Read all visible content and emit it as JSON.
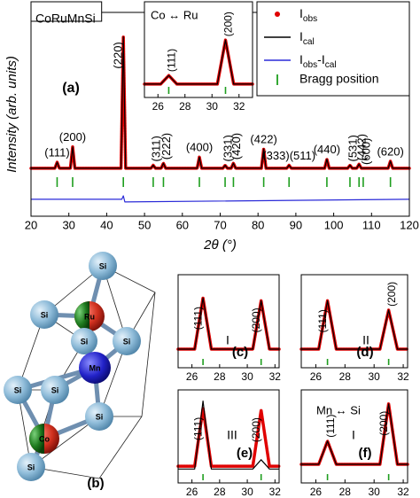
{
  "chart_data": [
    {
      "type": "line",
      "title": "CoRuMnSi",
      "panel_label": "(a)",
      "xlabel": "2θ (°)",
      "ylabel": "Intensity (arb. units)",
      "xlim": [
        20,
        120
      ],
      "xticks": [
        20,
        30,
        40,
        50,
        60,
        70,
        80,
        90,
        100,
        110,
        120
      ],
      "ylim": [
        0,
        100
      ],
      "x": [
        20,
        26.3,
        26.9,
        27.5,
        30.4,
        31,
        31.6,
        43.8,
        44.4,
        45,
        51.7,
        52.3,
        52.9,
        54.4,
        55,
        55.6,
        63.9,
        64.5,
        65.1,
        70.7,
        71.3,
        71.9,
        72.9,
        73.5,
        74.1,
        80.9,
        81.5,
        82.1,
        87.6,
        88.2,
        88.8,
        97.6,
        98.2,
        98.8,
        103.7,
        104.3,
        104.9,
        106.1,
        106.7,
        107.3,
        114.4,
        115,
        115.6,
        120
      ],
      "series": [
        {
          "name": "Iobs",
          "color": "#e00000",
          "values": [
            23.5,
            23.5,
            26.5,
            23.5,
            23.5,
            34,
            23.5,
            23.5,
            88,
            23.5,
            23.5,
            25,
            23.5,
            23.5,
            26,
            23.5,
            23.5,
            29,
            23.5,
            23.5,
            25,
            23.5,
            23.5,
            26,
            23.5,
            23.5,
            33,
            23.5,
            23.5,
            25,
            23.5,
            23.5,
            28,
            23.5,
            23.5,
            25,
            23.5,
            23.5,
            25.5,
            23.5,
            23.5,
            27,
            23.5,
            23.5
          ]
        },
        {
          "name": "Ical",
          "color": "#000000",
          "values": [
            23.5,
            23.5,
            26.5,
            23.5,
            23.5,
            34,
            23.5,
            23.5,
            88,
            23.5,
            23.5,
            25,
            23.5,
            23.5,
            26,
            23.5,
            23.5,
            29,
            23.5,
            23.5,
            25,
            23.5,
            23.5,
            26,
            23.5,
            23.5,
            33,
            23.5,
            23.5,
            25,
            23.5,
            23.5,
            28,
            23.5,
            23.5,
            25,
            23.5,
            23.5,
            25.5,
            23.5,
            23.5,
            27,
            23.5,
            23.5
          ]
        },
        {
          "name": "Iobs-Ical",
          "color": "#2a2ad8",
          "x": [
            20,
            44,
            44.4,
            44.8,
            120
          ],
          "values": [
            8.3,
            8.3,
            10,
            7,
            8.3
          ]
        }
      ],
      "bragg_name": "Bragg position",
      "bragg_color": "#1e9e1e",
      "bragg_positions": [
        26.9,
        31,
        44.4,
        52.3,
        55,
        64.5,
        71.3,
        73.5,
        81.5,
        88.2,
        98.2,
        104.3,
        106.7,
        107.8,
        115
      ],
      "annotations": [
        {
          "text": "(111)",
          "x": 26.9
        },
        {
          "text": "(200)",
          "x": 31
        },
        {
          "text": "(220)",
          "x": 44.4,
          "rotate": true
        },
        {
          "text": "(311)",
          "x": 52.3,
          "rotate": true
        },
        {
          "text": "(222)",
          "x": 55,
          "rotate": true
        },
        {
          "text": "(400)",
          "x": 64.5
        },
        {
          "text": "(331)",
          "x": 71.3,
          "rotate": true
        },
        {
          "text": "(420)",
          "x": 73.5,
          "rotate": true
        },
        {
          "text": "(422)",
          "x": 81.5
        },
        {
          "text": "(333)(511)",
          "x": 88.2
        },
        {
          "text": "(440)",
          "x": 98.2
        },
        {
          "text": "(531)",
          "x": 104.3,
          "rotate": true
        },
        {
          "text": "(442)",
          "x": 106.7,
          "rotate": true
        },
        {
          "text": "(600)",
          "x": 107.8,
          "rotate": true
        },
        {
          "text": "(620)",
          "x": 115
        }
      ]
    },
    {
      "type": "line",
      "title": "Co ↔ Ru",
      "xlim": [
        25,
        33
      ],
      "xticks": [
        26,
        28,
        30,
        32
      ],
      "ylim": [
        0,
        100
      ],
      "x": [
        25,
        26.2,
        26.8,
        27.4,
        30.4,
        31,
        31.6,
        33
      ],
      "series": [
        {
          "color": "#e00000",
          "values": [
            14,
            14,
            23,
            14,
            14,
            60,
            14,
            14
          ]
        },
        {
          "color": "#000000",
          "values": [
            14,
            14,
            23,
            14,
            14,
            60,
            14,
            14
          ]
        }
      ],
      "bragg_color": "#1e9e1e",
      "bragg_positions": [
        26.8,
        31
      ],
      "annotations": [
        {
          "text": "(111)",
          "x": 26.8,
          "rotate": true
        },
        {
          "text": "(200)",
          "x": 31,
          "rotate": true
        }
      ]
    },
    {
      "type": "line",
      "panel_label": "(c)",
      "note": "I",
      "xlim": [
        25,
        32.3
      ],
      "xticks": [
        26,
        28,
        30,
        32
      ],
      "ylim": [
        0,
        100
      ],
      "x": [
        25,
        26.2,
        26.8,
        27.4,
        30.4,
        31,
        31.6,
        32.3
      ],
      "series": [
        {
          "color": "#e00000",
          "values": [
            20,
            20,
            75,
            20,
            20,
            72,
            20,
            20
          ]
        },
        {
          "color": "#000000",
          "values": [
            20,
            20,
            75,
            20,
            20,
            72,
            20,
            20
          ]
        }
      ],
      "bragg_color": "#1e9e1e",
      "bragg_positions": [
        26.8,
        31
      ],
      "annotations": [
        {
          "text": "(111)",
          "x": 26.8,
          "rotate": true
        },
        {
          "text": "(200)",
          "x": 31,
          "rotate": true
        }
      ]
    },
    {
      "type": "line",
      "panel_label": "(d)",
      "note": "II",
      "xlim": [
        25,
        32.3
      ],
      "xticks": [
        26,
        28,
        30,
        32
      ],
      "ylim": [
        0,
        100
      ],
      "x": [
        25,
        26.2,
        26.8,
        27.4,
        30.4,
        31,
        31.6,
        32.3
      ],
      "series": [
        {
          "color": "#e00000",
          "values": [
            20,
            20,
            72,
            20,
            20,
            62,
            20,
            20
          ]
        },
        {
          "color": "#000000",
          "values": [
            20,
            20,
            72,
            20,
            20,
            62,
            20,
            20
          ]
        }
      ],
      "bragg_color": "#1e9e1e",
      "bragg_positions": [
        26.8,
        31
      ],
      "annotations": [
        {
          "text": "(111)",
          "x": 26.8,
          "rotate": true
        },
        {
          "text": "(200)",
          "x": 31,
          "rotate": true
        }
      ]
    },
    {
      "type": "line",
      "panel_label": "(e)",
      "note": "III",
      "xlim": [
        25,
        32.3
      ],
      "xticks": [
        26,
        28,
        30,
        32
      ],
      "ylim": [
        0,
        100
      ],
      "x": [
        25,
        26.2,
        26.8,
        27.4,
        30.4,
        31,
        31.6,
        32.3
      ],
      "series": [
        {
          "color": "#e00000",
          "values": [
            18,
            18,
            80,
            18,
            18,
            78,
            18,
            18
          ]
        },
        {
          "color": "#000000",
          "values": [
            15,
            15,
            88,
            15,
            15,
            25,
            15,
            15
          ]
        }
      ],
      "bragg_color": "#1e9e1e",
      "bragg_positions": [
        26.8,
        31
      ],
      "annotations": [
        {
          "text": "(111)",
          "x": 26.8,
          "rotate": true
        },
        {
          "text": "(200)",
          "x": 31,
          "rotate": true
        }
      ]
    },
    {
      "type": "line",
      "title": "Mn ↔ Si",
      "panel_label": "(f)",
      "note": "I",
      "xlim": [
        25,
        32.3
      ],
      "xticks": [
        26,
        28,
        30,
        32
      ],
      "ylim": [
        0,
        100
      ],
      "x": [
        25,
        26.2,
        26.8,
        27.4,
        30.4,
        31,
        31.6,
        32.3
      ],
      "series": [
        {
          "color": "#e00000",
          "values": [
            20,
            20,
            45,
            20,
            20,
            85,
            20,
            20
          ]
        },
        {
          "color": "#000000",
          "values": [
            20,
            20,
            45,
            20,
            20,
            85,
            20,
            20
          ]
        }
      ],
      "bragg_color": "#1e9e1e",
      "bragg_positions": [
        26.8,
        31
      ],
      "annotations": [
        {
          "text": "(111)",
          "x": 26.8,
          "rotate": true
        },
        {
          "text": "(200)",
          "x": 31,
          "rotate": true
        }
      ]
    }
  ],
  "structure": {
    "panel_label": "(b)",
    "atoms": [
      "Si",
      "Si",
      "Ru",
      "Si",
      "Si",
      "Mn",
      "Si",
      "Si",
      "Si",
      "Co",
      "Si"
    ]
  }
}
